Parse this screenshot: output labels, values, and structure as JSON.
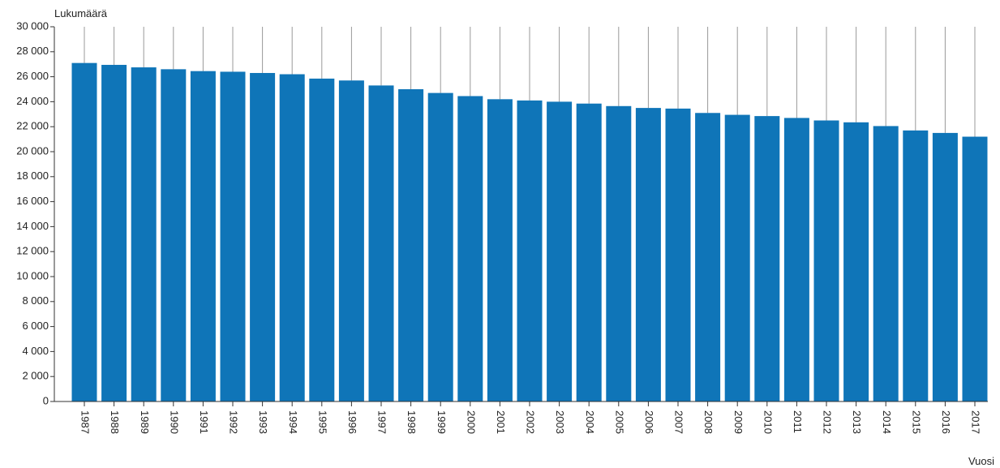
{
  "chart_data": {
    "type": "bar",
    "ylabel": "Lukumäärä",
    "xlabel": "Vuosi",
    "ylim": [
      0,
      30000
    ],
    "yticks": [
      {
        "value": 0,
        "label": "0"
      },
      {
        "value": 2000,
        "label": "2 000"
      },
      {
        "value": 4000,
        "label": "4 000"
      },
      {
        "value": 6000,
        "label": "6 000"
      },
      {
        "value": 8000,
        "label": "8 000"
      },
      {
        "value": 10000,
        "label": "10 000"
      },
      {
        "value": 12000,
        "label": "12 000"
      },
      {
        "value": 14000,
        "label": "14 000"
      },
      {
        "value": 16000,
        "label": "16 000"
      },
      {
        "value": 18000,
        "label": "18 000"
      },
      {
        "value": 20000,
        "label": "20 000"
      },
      {
        "value": 22000,
        "label": "22 000"
      },
      {
        "value": 24000,
        "label": "24 000"
      },
      {
        "value": 26000,
        "label": "26 000"
      },
      {
        "value": 28000,
        "label": "28 000"
      },
      {
        "value": 30000,
        "label": "30 000"
      }
    ],
    "categories": [
      "1987",
      "1988",
      "1989",
      "1990",
      "1991",
      "1992",
      "1993",
      "1994",
      "1995",
      "1996",
      "1997",
      "1998",
      "1999",
      "2000",
      "2001",
      "2002",
      "2003",
      "2004",
      "2005",
      "2006",
      "2007",
      "2008",
      "2009",
      "2010",
      "2011",
      "2012",
      "2013",
      "2014",
      "2015",
      "2016",
      "2017"
    ],
    "values": [
      27100,
      26950,
      26750,
      26600,
      26450,
      26400,
      26300,
      26200,
      25850,
      25700,
      25300,
      25000,
      24700,
      24450,
      24200,
      24100,
      24000,
      23850,
      23650,
      23500,
      23450,
      23100,
      22950,
      22850,
      22700,
      22500,
      22350,
      22050,
      21700,
      21500,
      21200
    ],
    "grid": "vertical",
    "legend": "none",
    "colors": {
      "bar": "#0f75b8",
      "grid": "#999999",
      "axis": "#333333",
      "text": "#222222"
    }
  }
}
